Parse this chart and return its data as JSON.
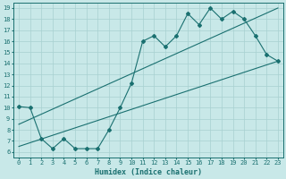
{
  "xlabel": "Humidex (Indice chaleur)",
  "ylabel": "",
  "xlim": [
    -0.5,
    23.5
  ],
  "ylim": [
    5.5,
    19.5
  ],
  "xticks": [
    0,
    1,
    2,
    3,
    4,
    5,
    6,
    7,
    8,
    9,
    10,
    11,
    12,
    13,
    14,
    15,
    16,
    17,
    18,
    19,
    20,
    21,
    22,
    23
  ],
  "yticks": [
    6,
    7,
    8,
    9,
    10,
    11,
    12,
    13,
    14,
    15,
    16,
    17,
    18,
    19
  ],
  "bg_color": "#c8e8e8",
  "line_color": "#1a7070",
  "grid_color": "#a8d0d0",
  "line1_x": [
    0,
    1,
    2,
    3,
    4,
    5,
    6,
    7,
    8,
    9,
    10,
    11,
    12,
    13,
    14,
    15,
    16,
    17,
    18,
    19,
    20,
    21,
    22,
    23
  ],
  "line1_y": [
    10.1,
    10.0,
    7.2,
    6.3,
    7.2,
    6.3,
    6.3,
    6.3,
    8.0,
    10.0,
    12.2,
    16.0,
    16.5,
    15.5,
    16.5,
    18.5,
    17.5,
    19.0,
    18.0,
    18.7,
    18.0,
    16.5,
    14.8,
    14.2
  ],
  "line2_x": [
    0,
    23
  ],
  "line2_y": [
    6.5,
    14.2
  ],
  "line3_x": [
    0,
    23
  ],
  "line3_y": [
    8.5,
    19.0
  ],
  "tick_fontsize": 5.0,
  "xlabel_fontsize": 6.0
}
